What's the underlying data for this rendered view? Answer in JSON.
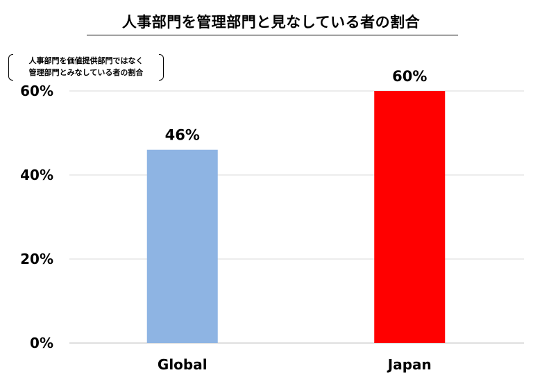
{
  "chart_data": {
    "type": "bar",
    "title": "人事部門を管理部門と見なしている者の割合",
    "ylabel_lines": [
      "人事部門を価値提供部門ではなく",
      "管理部門とみなしている者の割合"
    ],
    "xlabel": "",
    "categories": [
      "Global",
      "Japan"
    ],
    "values": [
      46,
      60
    ],
    "data_labels": [
      "46%",
      "60%"
    ],
    "bar_colors": [
      "#8eb4e3",
      "#ff0000"
    ],
    "ylim": [
      0,
      60
    ],
    "yticks": [
      0,
      20,
      40,
      60
    ],
    "ytick_labels": [
      "0%",
      "20%",
      "40%",
      "60%"
    ],
    "grid": true,
    "legend": "none"
  }
}
